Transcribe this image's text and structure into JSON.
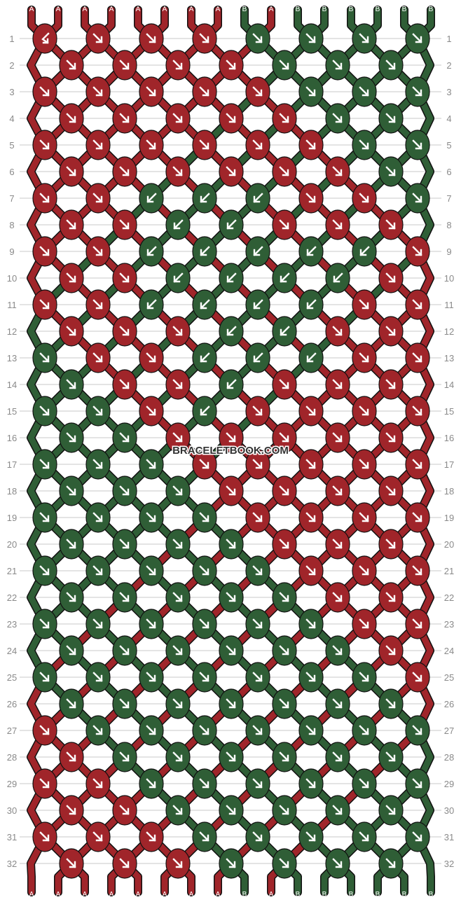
{
  "watermark": "BRACELETBOOK.COM",
  "colors": {
    "A": "#a0252a",
    "B": "#2f5e36",
    "outline": "#111111",
    "arrow": "#ffffff",
    "grid": "#c8c8c8"
  },
  "strings_top": [
    "A",
    "A",
    "A",
    "A",
    "A",
    "A",
    "A",
    "A",
    "B",
    "A",
    "B",
    "B",
    "B",
    "B",
    "B",
    "B"
  ],
  "strings_bottom": [
    "A",
    "A",
    "A",
    "A",
    "A",
    "A",
    "A",
    "A",
    "B",
    "A",
    "B",
    "B",
    "B",
    "B",
    "B",
    "B"
  ],
  "row_numbers": [
    "1",
    "2",
    "3",
    "4",
    "5",
    "6",
    "7",
    "8",
    "9",
    "10",
    "11",
    "12",
    "13",
    "14",
    "15",
    "16",
    "17",
    "18",
    "19",
    "20",
    "21",
    "22",
    "23",
    "24",
    "25",
    "26",
    "27",
    "28",
    "29",
    "30",
    "31",
    "32"
  ],
  "knot_legend": {
    "d": "forward",
    "l": "backward",
    "bf": "backward-forward"
  },
  "rows": [
    {
      "colors": "AAAABBBB",
      "knots": [
        "bf",
        "d",
        "d",
        "d",
        "d",
        "d",
        "d",
        "d"
      ]
    },
    {
      "colors": "AAAABBB",
      "knots": [
        "d",
        "d",
        "d",
        "d",
        "d",
        "d",
        "d"
      ]
    },
    {
      "colors": "AAAAABBB",
      "knots": [
        "d",
        "d",
        "d",
        "d",
        "d",
        "d",
        "d",
        "d"
      ]
    },
    {
      "colors": "AAAAABB",
      "knots": [
        "d",
        "d",
        "d",
        "d",
        "d",
        "d",
        "d"
      ]
    },
    {
      "colors": "AAAAAABB",
      "knots": [
        "d",
        "d",
        "d",
        "d",
        "d",
        "d",
        "d",
        "d"
      ]
    },
    {
      "colors": "AAAAAAB",
      "knots": [
        "d",
        "d",
        "d",
        "d",
        "d",
        "d",
        "d"
      ]
    },
    {
      "colors": "AABBBAAB",
      "knots": [
        "d",
        "d",
        "l",
        "l",
        "l",
        "d",
        "d",
        "d"
      ]
    },
    {
      "colors": "AABBAAA",
      "knots": [
        "d",
        "d",
        "l",
        "l",
        "d",
        "d",
        "d"
      ]
    },
    {
      "colors": "AABBBBBA",
      "knots": [
        "d",
        "d",
        "l",
        "l",
        "l",
        "l",
        "l",
        "d"
      ]
    },
    {
      "colors": "AABBBBA",
      "knots": [
        "d",
        "d",
        "l",
        "l",
        "l",
        "l",
        "d"
      ]
    },
    {
      "colors": "AABBBBAA",
      "knots": [
        "d",
        "d",
        "l",
        "l",
        "l",
        "l",
        "d",
        "d"
      ]
    },
    {
      "colors": "AAABBAA",
      "knots": [
        "d",
        "d",
        "d",
        "l",
        "l",
        "d",
        "d"
      ]
    },
    {
      "colors": "BAABBBAA",
      "knots": [
        "d",
        "d",
        "d",
        "l",
        "l",
        "l",
        "d",
        "d"
      ]
    },
    {
      "colors": "BAABAAA",
      "knots": [
        "d",
        "d",
        "d",
        "l",
        "d",
        "d",
        "d"
      ]
    },
    {
      "colors": "BBABAAAA",
      "knots": [
        "d",
        "d",
        "d",
        "l",
        "d",
        "d",
        "d",
        "d"
      ]
    },
    {
      "colors": "BBAAAAA",
      "knots": [
        "d",
        "d",
        "d",
        "d",
        "d",
        "d",
        "d"
      ]
    },
    {
      "colors": "BBBAAAAA",
      "knots": [
        "d",
        "d",
        "d",
        "d",
        "d",
        "d",
        "d",
        "d"
      ]
    },
    {
      "colors": "BBBAAAA",
      "knots": [
        "d",
        "d",
        "d",
        "d",
        "d",
        "d",
        "d"
      ]
    },
    {
      "colors": "BBBBAAAA",
      "knots": [
        "d",
        "d",
        "d",
        "d",
        "d",
        "d",
        "d",
        "d"
      ]
    },
    {
      "colors": "BBBBAAA",
      "knots": [
        "d",
        "d",
        "d",
        "d",
        "d",
        "d",
        "d"
      ]
    },
    {
      "colors": "BBBBBAAA",
      "knots": [
        "d",
        "d",
        "d",
        "d",
        "d",
        "d",
        "d",
        "d"
      ]
    },
    {
      "colors": "BBBBBAA",
      "knots": [
        "d",
        "d",
        "d",
        "d",
        "d",
        "d",
        "d"
      ]
    },
    {
      "colors": "BBBBBBAA",
      "knots": [
        "d",
        "d",
        "d",
        "d",
        "d",
        "d",
        "d",
        "d"
      ]
    },
    {
      "colors": "BBBBBBA",
      "knots": [
        "d",
        "d",
        "d",
        "d",
        "d",
        "d",
        "d"
      ]
    },
    {
      "colors": "BBBBBBBA",
      "knots": [
        "d",
        "d",
        "d",
        "d",
        "d",
        "d",
        "d",
        "d"
      ]
    },
    {
      "colors": "BBBBBBB",
      "knots": [
        "d",
        "d",
        "d",
        "d",
        "d",
        "d",
        "d"
      ]
    },
    {
      "colors": "ABBBBBBB",
      "knots": [
        "d",
        "d",
        "d",
        "d",
        "d",
        "d",
        "d",
        "d"
      ]
    },
    {
      "colors": "ABBBBBB",
      "knots": [
        "d",
        "d",
        "d",
        "d",
        "d",
        "d",
        "d"
      ]
    },
    {
      "colors": "AABBBBBB",
      "knots": [
        "d",
        "d",
        "d",
        "d",
        "d",
        "d",
        "d",
        "d"
      ]
    },
    {
      "colors": "AABBBBB",
      "knots": [
        "d",
        "d",
        "d",
        "d",
        "d",
        "d",
        "d"
      ]
    },
    {
      "colors": "AAABBBBB",
      "knots": [
        "d",
        "d",
        "d",
        "d",
        "d",
        "d",
        "d",
        "d"
      ]
    },
    {
      "colors": "AAABBBB",
      "knots": [
        "d",
        "d",
        "d",
        "d",
        "d",
        "d",
        "d"
      ]
    }
  ]
}
